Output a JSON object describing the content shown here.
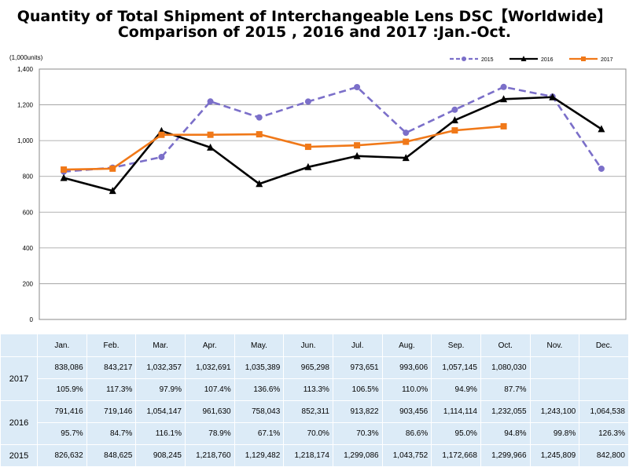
{
  "title_line1": "Quantity of Total Shipment of Interchangeable Lens DSC【Worldwide】",
  "title_line2": "Comparison of 2015 , 2016 and 2017 :Jan.-Oct.",
  "chart_data": {
    "type": "line",
    "categories": [
      "Jan.",
      "Feb.",
      "Mar.",
      "Apr.",
      "May.",
      "Jun.",
      "Jul.",
      "Aug.",
      "Sep.",
      "Oct.",
      "Nov.",
      "Dec."
    ],
    "unit_label": "(1,000units)",
    "ylim": [
      0,
      1400
    ],
    "yticks": [
      "0",
      "200",
      "400",
      "600",
      "800",
      "1,000",
      "1,200",
      "1,400"
    ],
    "grid": true,
    "legend_position": "top-right",
    "series": [
      {
        "name": "2015",
        "color": "#7b6fc9",
        "style": "dashed",
        "marker": "circle",
        "values": [
          826.632,
          848.625,
          908.245,
          1218.76,
          1129.482,
          1218.174,
          1299.086,
          1043.752,
          1172.668,
          1299.966,
          1245.809,
          842.8
        ]
      },
      {
        "name": "2016",
        "color": "#000000",
        "style": "solid",
        "marker": "triangle",
        "values": [
          791.416,
          719.146,
          1054.147,
          961.63,
          758.043,
          852.311,
          913.822,
          903.456,
          1114.114,
          1232.055,
          1243.1,
          1064.538
        ]
      },
      {
        "name": "2017",
        "color": "#f07818",
        "style": "solid",
        "marker": "square",
        "values": [
          838.086,
          843.217,
          1032.357,
          1032.691,
          1035.389,
          965.298,
          973.651,
          993.606,
          1057.145,
          1080.03,
          null,
          null
        ]
      }
    ]
  },
  "table": {
    "months": [
      "Jan.",
      "Feb.",
      "Mar.",
      "Apr.",
      "May.",
      "Jun.",
      "Jul.",
      "Aug.",
      "Sep.",
      "Oct.",
      "Nov.",
      "Dec."
    ],
    "rows": [
      {
        "year": "2017",
        "values": [
          "838,086",
          "843,217",
          "1,032,357",
          "1,032,691",
          "1,035,389",
          "965,298",
          "973,651",
          "993,606",
          "1,057,145",
          "1,080,030",
          "",
          ""
        ],
        "pcts": [
          "105.9%",
          "117.3%",
          "97.9%",
          "107.4%",
          "136.6%",
          "113.3%",
          "106.5%",
          "110.0%",
          "94.9%",
          "87.7%",
          "",
          ""
        ]
      },
      {
        "year": "2016",
        "values": [
          "791,416",
          "719,146",
          "1,054,147",
          "961,630",
          "758,043",
          "852,311",
          "913,822",
          "903,456",
          "1,114,114",
          "1,232,055",
          "1,243,100",
          "1,064,538"
        ],
        "pcts": [
          "95.7%",
          "84.7%",
          "116.1%",
          "78.9%",
          "67.1%",
          "70.0%",
          "70.3%",
          "86.6%",
          "95.0%",
          "94.8%",
          "99.8%",
          "126.3%"
        ]
      },
      {
        "year": "2015",
        "values": [
          "826,632",
          "848,625",
          "908,245",
          "1,218,760",
          "1,129,482",
          "1,218,174",
          "1,299,086",
          "1,043,752",
          "1,172,668",
          "1,299,966",
          "1,245,809",
          "842,800"
        ],
        "pcts": []
      }
    ]
  }
}
